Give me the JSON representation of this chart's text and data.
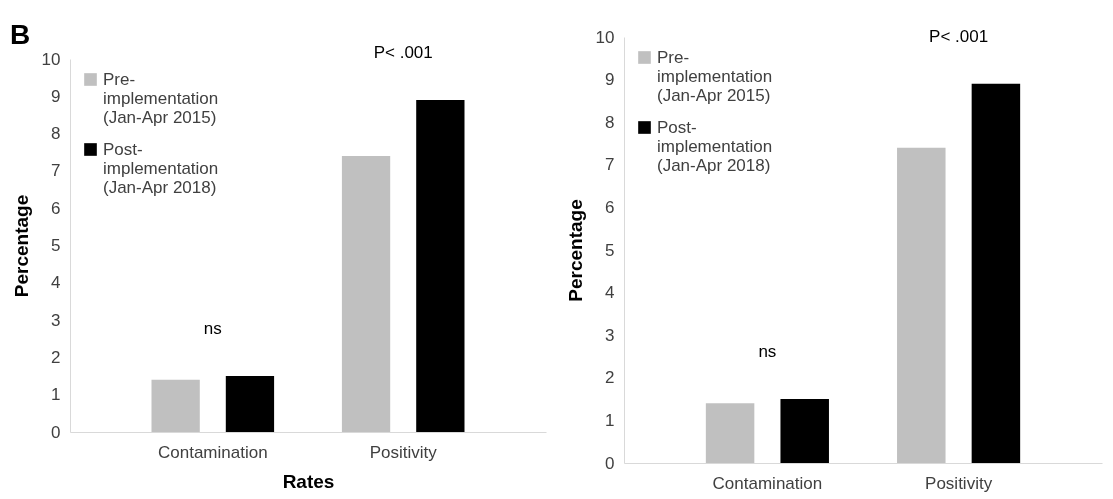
{
  "chart_data": [
    {
      "type": "bar",
      "title": "B",
      "xlabel": "Rates",
      "ylabel": "Percentage",
      "categories": [
        "Contamination",
        "Positivity"
      ],
      "series": [
        {
          "name": "Pre- implementation (Jan-Apr 2015)",
          "color": "#c0c0c0",
          "values": [
            1.4,
            7.4
          ]
        },
        {
          "name": "Post- implementation (Jan-Apr 2018)",
          "color": "#000000",
          "values": [
            1.5,
            8.9
          ]
        }
      ],
      "ylim": [
        0,
        10
      ],
      "yticks": [
        0,
        1,
        2,
        3,
        4,
        5,
        6,
        7,
        8,
        9,
        10
      ],
      "legend": "top left",
      "grid": false,
      "annotations": [
        "ns",
        "P< .001"
      ]
    },
    {
      "type": "bar",
      "ylabel": "Percentage",
      "categories": [
        "Contamination",
        "Positivity"
      ],
      "series": [
        {
          "name": "Pre- implementation (Jan-Apr 2015)",
          "color": "#c0c0c0",
          "values": [
            1.4,
            7.4
          ]
        },
        {
          "name": "Post- implementation (Jan-Apr 2018)",
          "color": "#000000",
          "values": [
            1.5,
            8.9
          ]
        }
      ],
      "ylim": [
        0,
        10
      ],
      "yticks": [
        0,
        1,
        2,
        3,
        4,
        5,
        6,
        7,
        8,
        9,
        10
      ],
      "legend": "top left",
      "grid": false,
      "annotations": [
        "ns",
        "P< .001"
      ]
    }
  ]
}
